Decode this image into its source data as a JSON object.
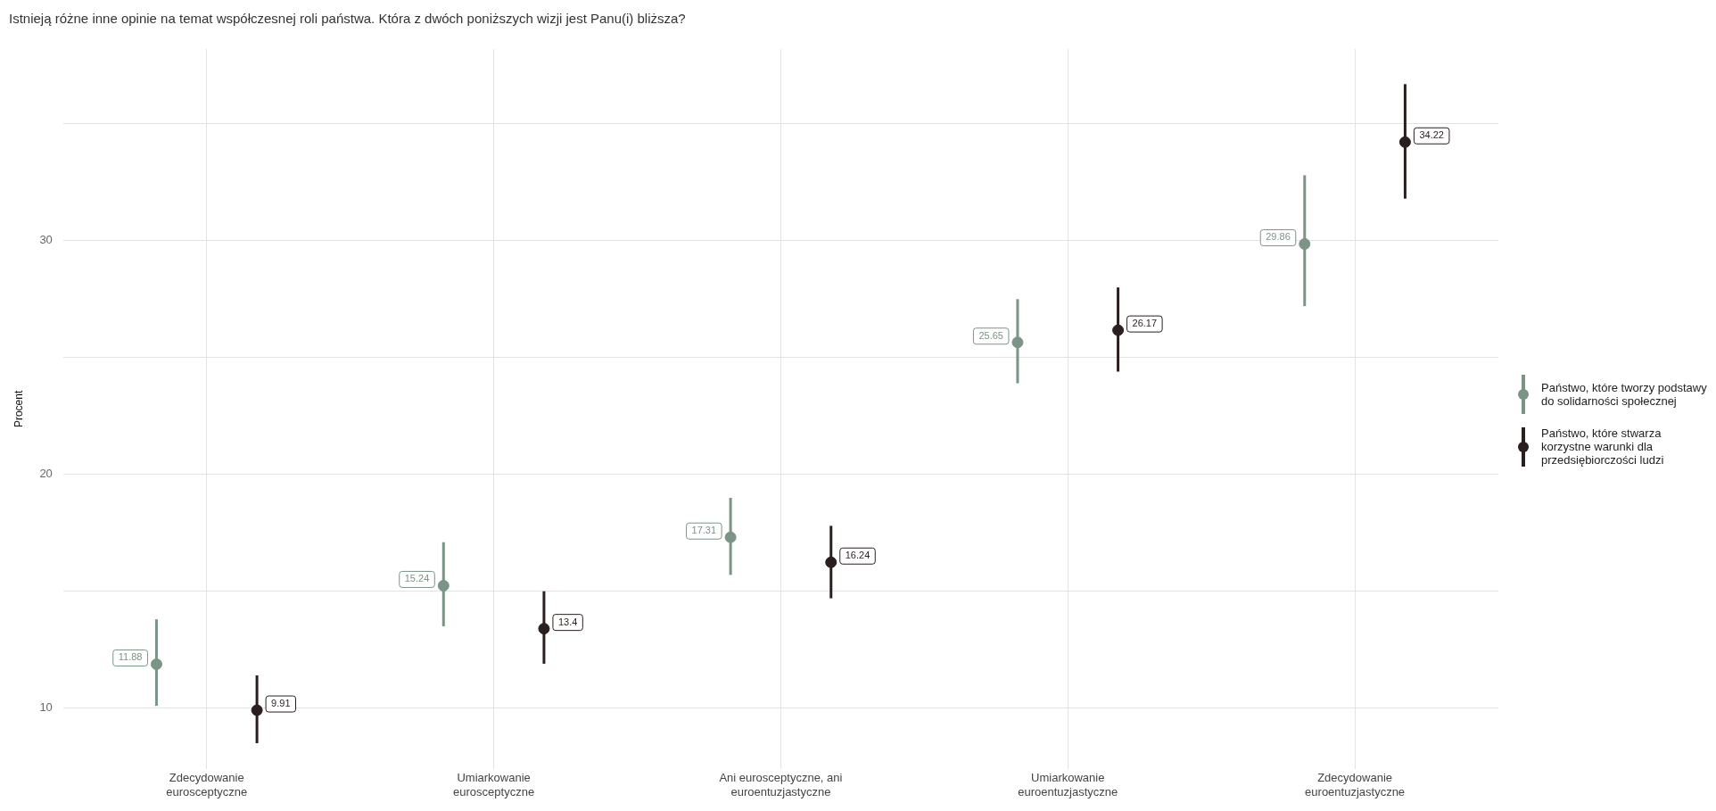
{
  "chart_data": {
    "type": "scatter",
    "title": "Istnieją różne inne opinie na temat współczesnej roli państwa. Która z dwóch poniższych wizji jest Panu(i) bliższa?",
    "ylabel": "Procent",
    "categories": [
      "Zdecydowanie eurosceptyczne",
      "Umiarkowanie eurosceptyczne",
      "Ani eurosceptyczne, ani euroentuzjastyczne",
      "Umiarkowanie euroentuzjastyczne",
      "Zdecydowanie euroentuzjastyczne"
    ],
    "series": [
      {
        "name": "Państwo, które tworzy podstawy do solidarności społecznej",
        "color": "#7a9486",
        "values": [
          11.88,
          15.24,
          17.31,
          25.65,
          29.86
        ],
        "errors": [
          [
            10.1,
            13.8
          ],
          [
            13.5,
            17.1
          ],
          [
            15.7,
            19.0
          ],
          [
            23.9,
            27.5
          ],
          [
            27.2,
            32.8
          ]
        ]
      },
      {
        "name": "Państwo, które stwarza korzystne warunki dla przedsiębiorczości ludzi",
        "color": "#2a1e1e",
        "values": [
          9.91,
          13.4,
          16.24,
          26.17,
          34.22
        ],
        "errors": [
          [
            8.5,
            11.4
          ],
          [
            11.9,
            15.0
          ],
          [
            14.7,
            17.8
          ],
          [
            24.4,
            28.0
          ],
          [
            31.8,
            36.7
          ]
        ]
      }
    ],
    "ylim": [
      7.4,
      38.2
    ],
    "yticks": [
      10,
      {
        "value": 15,
        "label": null
      },
      20,
      {
        "value": 25,
        "label": null
      },
      30,
      {
        "value": 35,
        "label": null
      }
    ],
    "grid": true,
    "legend": "right",
    "marker": "circle",
    "data_labels": true
  }
}
